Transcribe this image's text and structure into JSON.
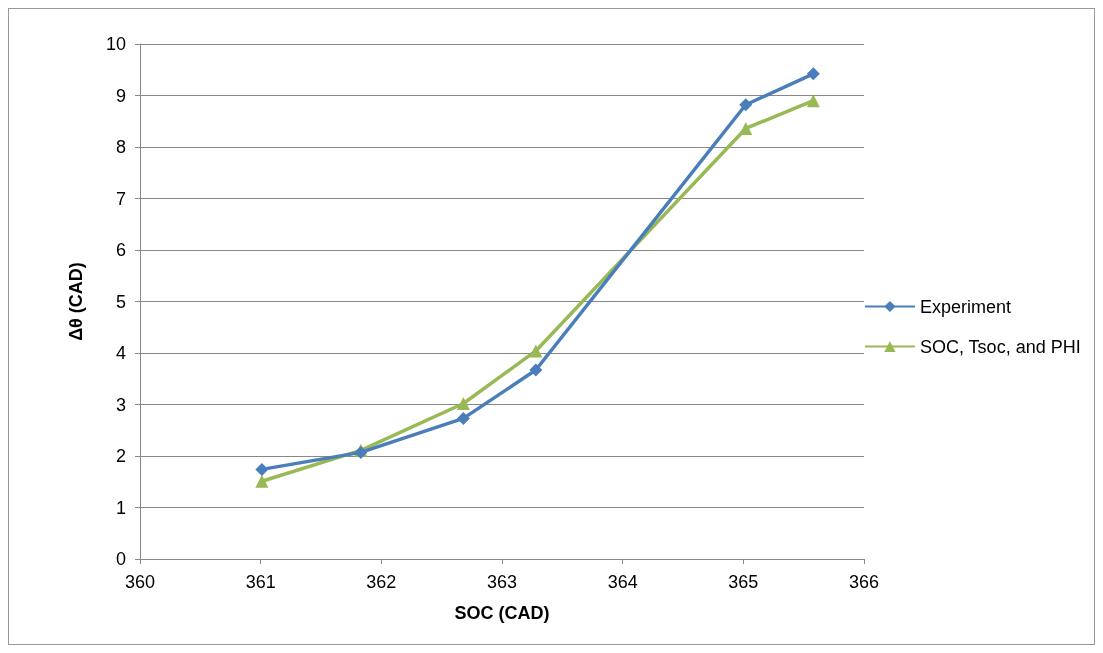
{
  "chart_data": {
    "type": "line",
    "xlabel": "SOC (CAD)",
    "ylabel": "Δθ (CAD)",
    "xlim": [
      360,
      366
    ],
    "xticks": [
      360,
      361,
      362,
      363,
      364,
      365,
      366
    ],
    "ylim": [
      0,
      10
    ],
    "yticks": [
      0,
      1,
      2,
      3,
      4,
      5,
      6,
      7,
      8,
      9,
      10
    ],
    "grid": "y",
    "legend": "right",
    "series": [
      {
        "name": "Experiment",
        "color": "#4a7ebb",
        "marker": "diamond",
        "x": [
          361.01,
          361.83,
          362.68,
          363.28,
          365.02,
          365.58
        ],
        "values": [
          1.74,
          2.07,
          2.73,
          3.67,
          8.82,
          9.42
        ]
      },
      {
        "name": "SOC, Tsoc, and PHI",
        "color": "#98b954",
        "marker": "triangle",
        "x": [
          361.01,
          361.83,
          362.68,
          363.28,
          365.02,
          365.58
        ],
        "values": [
          1.51,
          2.11,
          3.02,
          4.04,
          8.36,
          8.9
        ]
      }
    ]
  }
}
